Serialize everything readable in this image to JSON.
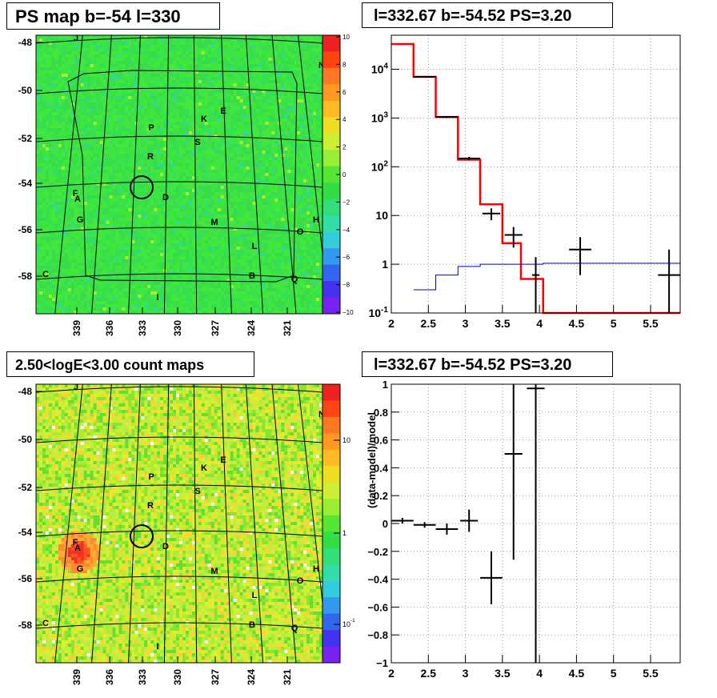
{
  "panels": {
    "tl": {
      "title": "PS map b=-54 l=330"
    },
    "tr": {
      "title": "l=332.67 b=-54.52 PS=3.20"
    },
    "bl": {
      "title": "2.50<logE<3.00 count maps"
    },
    "br": {
      "title": "l=332.67 b=-54.52 PS=3.20"
    }
  },
  "colors": {
    "data": "#000000",
    "model_total": "#ff0000",
    "model_background": "#0000cc",
    "map_green": "#33dd33",
    "map_yellow": "#ccee33",
    "source_circle": "#000000"
  },
  "chart_data": [
    {
      "id": "ps-map",
      "type": "heatmap",
      "title": "PS map b=-54 l=330",
      "x_ticks": [
        "339",
        "336",
        "333",
        "330",
        "327",
        "324",
        "321"
      ],
      "y_ticks": [
        "-48",
        "-50",
        "-52",
        "-54",
        "-56",
        "-58"
      ],
      "colorbar": {
        "ticks": [
          "10",
          "8",
          "6",
          "4",
          "2",
          "0",
          "−2",
          "−4",
          "−6",
          "−8",
          "−10"
        ],
        "range": [
          -10,
          10
        ]
      },
      "source_labels": [
        "J",
        "N",
        "K",
        "E",
        "P",
        "S",
        "R",
        "F",
        "A",
        "D",
        "G",
        "M",
        "H",
        "O",
        "L",
        "C",
        "B",
        "Q",
        "I"
      ],
      "circle_center": [
        333,
        -54
      ]
    },
    {
      "id": "spectrum",
      "type": "line",
      "title": "l=332.67 b=-54.52 PS=3.20",
      "log_y": true,
      "xlim": [
        2,
        5.9
      ],
      "ylim": [
        0.1,
        50000
      ],
      "x_ticks": [
        "2",
        "2.5",
        "3",
        "3.5",
        "4",
        "4.5",
        "5",
        "5.5"
      ],
      "y_ticks": [
        "10^{-1}",
        "1",
        "10",
        "10^{2}",
        "10^{3}",
        "10^{4}"
      ],
      "series": [
        {
          "name": "",
          "kind": "step",
          "color_key": "model_total",
          "edges": [
            2,
            2.3,
            2.6,
            2.9,
            3.2,
            3.5,
            3.75,
            4.05,
            4.4,
            5.9
          ],
          "values": [
            33000,
            7000,
            1050,
            140,
            17,
            2.7,
            0.5,
            0.1,
            0.1
          ]
        },
        {
          "name": "",
          "kind": "step",
          "color_key": "model_background",
          "edges": [
            2.3,
            2.6,
            2.9,
            3.2,
            3.5,
            3.75,
            4.05,
            4.4,
            5.9
          ],
          "values": [
            0.3,
            0.6,
            0.9,
            1,
            1,
            1,
            1.05,
            1.05
          ]
        },
        {
          "name": "",
          "kind": "errorbar",
          "color_key": "data",
          "x": [
            2.45,
            2.75,
            3.05,
            3.35,
            3.65,
            3.95,
            4.55,
            5.75
          ],
          "y": [
            7000,
            1050,
            148,
            11,
            4,
            0.6,
            2,
            0.6
          ],
          "xerr": [
            0.15,
            0.15,
            0.15,
            0.12,
            0.12,
            0.05,
            0.15,
            0.15
          ],
          "ylo": [
            6800,
            1000,
            138,
            8,
            2.2,
            0.1,
            0.6,
            0.1
          ],
          "yhi": [
            7200,
            1100,
            160,
            14,
            5.8,
            1.4,
            3.6,
            2
          ]
        }
      ]
    },
    {
      "id": "count-map",
      "type": "heatmap",
      "title": "2.50<logE<3.00 count maps",
      "x_ticks": [
        "339",
        "336",
        "333",
        "330",
        "327",
        "324",
        "321"
      ],
      "y_ticks": [
        "-48",
        "-50",
        "-52",
        "-54",
        "-56",
        "-58"
      ],
      "colorbar": {
        "ticks": [
          "10",
          "1",
          "10^{-1}"
        ],
        "log": true
      },
      "source_labels": [
        "J",
        "N",
        "K",
        "E",
        "P",
        "S",
        "R",
        "F",
        "A",
        "D",
        "G",
        "M",
        "H",
        "O",
        "L",
        "C",
        "B",
        "Q",
        "I"
      ],
      "circle_center": [
        333,
        -54
      ]
    },
    {
      "id": "residual",
      "type": "scatter",
      "title": "l=332.67 b=-54.52 PS=3.20",
      "ylabel": "(data-model)/model",
      "xlim": [
        2,
        5.9
      ],
      "ylim": [
        -1,
        1
      ],
      "x_ticks": [
        "2",
        "2.5",
        "3",
        "3.5",
        "4",
        "4.5",
        "5",
        "5.5"
      ],
      "y_ticks": [
        "1",
        "0.8",
        "0.6",
        "0.4",
        "0.2",
        "0",
        "−0.2",
        "−0.4",
        "−0.6",
        "−0.8",
        "−1"
      ],
      "series": [
        {
          "name": "",
          "x": [
            2.15,
            2.45,
            2.75,
            3.05,
            3.35,
            3.65,
            3.95
          ],
          "y": [
            0.02,
            -0.01,
            -0.04,
            0.02,
            -0.39,
            0.5,
            0.97
          ],
          "xerr": [
            0.15,
            0.15,
            0.15,
            0.12,
            0.15,
            0.12,
            0.12
          ],
          "ylo": [
            0,
            -0.03,
            -0.08,
            -0.06,
            -0.58,
            -0.26,
            -1
          ],
          "yhi": [
            0.04,
            0.01,
            0,
            0.1,
            -0.2,
            1,
            1
          ]
        }
      ]
    }
  ]
}
